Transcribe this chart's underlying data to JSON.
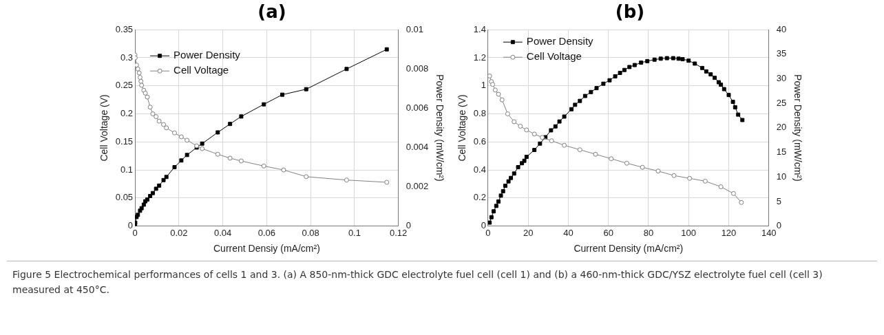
{
  "chart_data": [
    {
      "type": "line",
      "title": "(a)",
      "xlabel": "Current Densiy (mA/cm²)",
      "ylabel": "Cell Voltage (V)",
      "y2label": "Power Density (mW/cm²)",
      "xlim": [
        0,
        0.12
      ],
      "xticks": [
        0,
        0.02,
        0.04,
        0.06,
        0.08,
        0.1,
        0.12
      ],
      "ylim": [
        0,
        0.35
      ],
      "yticks": [
        0,
        0.05,
        0.1,
        0.15,
        0.2,
        0.25,
        0.3,
        0.35
      ],
      "y2lim": [
        0,
        0.01
      ],
      "y2ticks": [
        0,
        0.002,
        0.004,
        0.006,
        0.008,
        0.01
      ],
      "grid": true,
      "legend": "top left",
      "series": [
        {
          "name": "Power Density",
          "color": "#000000",
          "marker": "square",
          "axis": "y2",
          "x": [
            0,
            0.0001,
            0.0007,
            0.0013,
            0.0023,
            0.003,
            0.004,
            0.0047,
            0.0056,
            0.0069,
            0.0081,
            0.0096,
            0.011,
            0.013,
            0.0143,
            0.018,
            0.0211,
            0.0237,
            0.0281,
            0.0306,
            0.0377,
            0.0433,
            0.0484,
            0.0587,
            0.0671,
            0.078,
            0.0964,
            0.1147
          ],
          "values": [
            0,
            0.00017,
            0.00046,
            0.00057,
            0.00078,
            0.00091,
            0.00109,
            0.00126,
            0.00135,
            0.00153,
            0.00168,
            0.0019,
            0.00206,
            0.00234,
            0.0025,
            0.003,
            0.00334,
            0.00362,
            0.004,
            0.0042,
            0.00477,
            0.0052,
            0.00558,
            0.0062,
            0.00669,
            0.00697,
            0.008,
            0.009
          ]
        },
        {
          "name": "Cell Voltage",
          "color": "#808080",
          "marker": "circle",
          "axis": "y",
          "x": [
            0,
            0.0001,
            0.0007,
            0.0013,
            0.0019,
            0.0023,
            0.0027,
            0.003,
            0.004,
            0.0047,
            0.0056,
            0.0069,
            0.0081,
            0.0096,
            0.011,
            0.013,
            0.0143,
            0.018,
            0.0211,
            0.0237,
            0.0281,
            0.0306,
            0.0377,
            0.0433,
            0.0484,
            0.0587,
            0.0677,
            0.078,
            0.0964,
            0.1147
          ],
          "values": [
            0.305,
            0.3,
            0.287,
            0.28,
            0.273,
            0.265,
            0.258,
            0.251,
            0.242,
            0.237,
            0.23,
            0.212,
            0.2,
            0.195,
            0.187,
            0.181,
            0.175,
            0.166,
            0.159,
            0.153,
            0.143,
            0.138,
            0.128,
            0.121,
            0.116,
            0.107,
            0.1,
            0.088,
            0.082,
            0.078
          ]
        }
      ],
      "annotations": [
        "Figure 5 Electrochemical performances of cells 1 and 3. (a) A 850-nm-thick GDC electrolyte fuel cell (cell 1) and (b) a 460-nm-thick GDC/YSZ electrolyte fuel cell (cell 3) measured at 450°C."
      ]
    },
    {
      "type": "line",
      "title": "(b)",
      "xlabel": "Current Density (mA/cm²)",
      "ylabel": "Cell Voltage (V)",
      "y2label": "Power Density (mW/cm²)",
      "xlim": [
        0,
        140
      ],
      "xticks": [
        0,
        20,
        40,
        60,
        80,
        100,
        120,
        140
      ],
      "ylim": [
        0,
        1.4
      ],
      "yticks": [
        0,
        0.2,
        0.4,
        0.6,
        0.8,
        1,
        1.2,
        1.4
      ],
      "y2lim": [
        0,
        40
      ],
      "y2ticks": [
        0,
        5,
        10,
        15,
        20,
        25,
        30,
        35,
        40
      ],
      "grid": true,
      "legend": "top left",
      "series": [
        {
          "name": "Power Density",
          "color": "#000000",
          "marker": "square",
          "axis": "y2",
          "x": [
            0.8,
            1.7,
            2.8,
            4.1,
            5.2,
            6.4,
            7.5,
            8.6,
            10.2,
            11.4,
            13,
            15,
            16.9,
            18.1,
            19.2,
            23.1,
            25.9,
            28.6,
            31.4,
            33.6,
            35.6,
            38,
            41.6,
            43.4,
            45.8,
            48.4,
            51.3,
            54.1,
            57.5,
            60.6,
            63.4,
            65.8,
            68,
            70.5,
            73.1,
            76.3,
            79.4,
            83,
            86.1,
            89.2,
            92.3,
            95,
            97,
            100,
            103.1,
            106.8,
            108.8,
            111,
            113,
            115,
            116.1,
            117.7,
            120,
            122.1,
            123.2,
            124.7,
            126.8
          ],
          "values": [
            0.7,
            1.8,
            3,
            4.1,
            5,
            6.2,
            7.1,
            8.2,
            9.1,
            9.8,
            10.7,
            12,
            12.8,
            13.3,
            14.1,
            15.5,
            16.8,
            18.1,
            19.5,
            20.3,
            21.3,
            22.3,
            23.8,
            24.7,
            25.5,
            26.5,
            27.3,
            28.1,
            29,
            29.7,
            30.5,
            31.2,
            31.8,
            32.4,
            32.8,
            33.3,
            33.6,
            33.9,
            34.1,
            34.2,
            34.2,
            34.1,
            34,
            33.7,
            33.1,
            32.2,
            31.5,
            30.9,
            30.2,
            29.3,
            28.8,
            27.9,
            26.7,
            25.3,
            24.2,
            22.7,
            21.6
          ]
        },
        {
          "name": "Cell Voltage",
          "color": "#808080",
          "marker": "circle",
          "axis": "y",
          "x": [
            0.8,
            1.7,
            2.3,
            3.6,
            5.2,
            7,
            9.8,
            13,
            16.1,
            19.2,
            23.1,
            27,
            31.7,
            38,
            45.8,
            53.6,
            61.4,
            69.2,
            77,
            84.8,
            92.7,
            100.5,
            108.3,
            116.1,
            122.4,
            126.3
          ],
          "values": [
            1.07,
            1.03,
            1.01,
            0.97,
            0.94,
            0.9,
            0.8,
            0.744,
            0.712,
            0.685,
            0.656,
            0.632,
            0.608,
            0.576,
            0.544,
            0.512,
            0.48,
            0.448,
            0.419,
            0.392,
            0.36,
            0.34,
            0.32,
            0.28,
            0.232,
            0.168
          ]
        }
      ]
    }
  ]
}
